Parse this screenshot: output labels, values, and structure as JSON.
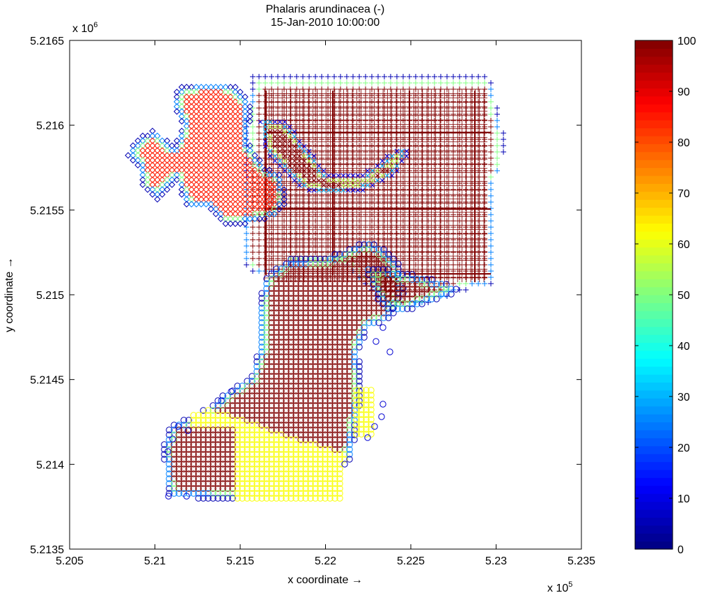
{
  "chart_data": {
    "type": "scatter",
    "title": [
      "Phalaris arundinacea (-)",
      "15-Jan-2010 10:00:00"
    ],
    "xlabel": "x coordinate →",
    "ylabel": "y coordinate →",
    "x_multiplier_label": {
      "base": "x 10",
      "exp": "5"
    },
    "y_multiplier_label": {
      "base": "x 10",
      "exp": "6"
    },
    "xlim": [
      5.205,
      5.235
    ],
    "ylim": [
      5.2135,
      5.2165
    ],
    "xticks": [
      5.205,
      5.21,
      5.215,
      5.22,
      5.225,
      5.23,
      5.235
    ],
    "xtick_labels": [
      "5.205",
      "5.21",
      "5.215",
      "5.22",
      "5.225",
      "5.23",
      "5.235"
    ],
    "yticks": [
      5.2135,
      5.214,
      5.2145,
      5.215,
      5.2155,
      5.216,
      5.2165
    ],
    "ytick_labels": [
      "5.2135",
      "5.214",
      "5.2145",
      "5.215",
      "5.2155",
      "5.216",
      "5.2165"
    ],
    "grid": false,
    "colorbar": {
      "colormap": "jet",
      "range": [
        0,
        100
      ],
      "ticks": [
        0,
        10,
        20,
        30,
        40,
        50,
        60,
        70,
        80,
        90,
        100
      ],
      "tick_labels": [
        "0",
        "10",
        "20",
        "30",
        "40",
        "50",
        "60",
        "70",
        "80",
        "90",
        "100"
      ]
    },
    "marker_groups": [
      {
        "marker": "plus",
        "region": "north-east grid",
        "extent": {
          "x": [
            5.2155,
            5.2305
          ],
          "y": [
            5.215,
            5.2163
          ]
        },
        "interior_value": 100,
        "edge_value": 5
      },
      {
        "marker": "square-grid",
        "region": "north-east grid interior",
        "extent": {
          "x": [
            5.2161,
            5.229
          ],
          "y": [
            5.2151,
            5.2162
          ]
        },
        "interior_value": 100
      },
      {
        "marker": "diamond",
        "region": "north-west patches",
        "extent": {
          "x": [
            5.2088,
            5.2165
          ],
          "y": [
            5.2155,
            5.2163
          ]
        },
        "interior_value": 85,
        "edge_value": 5
      },
      {
        "marker": "x-cross",
        "region": "central channel",
        "extent": {
          "x": [
            5.216,
            5.2245
          ],
          "y": [
            5.2154,
            5.216
          ]
        },
        "interior_value": 100,
        "edge_value": 10
      },
      {
        "marker": "circle",
        "region": "southern section",
        "extent": {
          "x": [
            5.2103,
            5.2265
          ],
          "y": [
            5.2138,
            5.2153
          ]
        },
        "interior_value": 100,
        "edge_value": 5
      },
      {
        "marker": "circle",
        "region": "south-west yellow zone",
        "extent": {
          "x": [
            5.2125,
            5.2208
          ],
          "y": [
            5.2138,
            5.2143
          ]
        },
        "interior_value": 62
      }
    ]
  }
}
